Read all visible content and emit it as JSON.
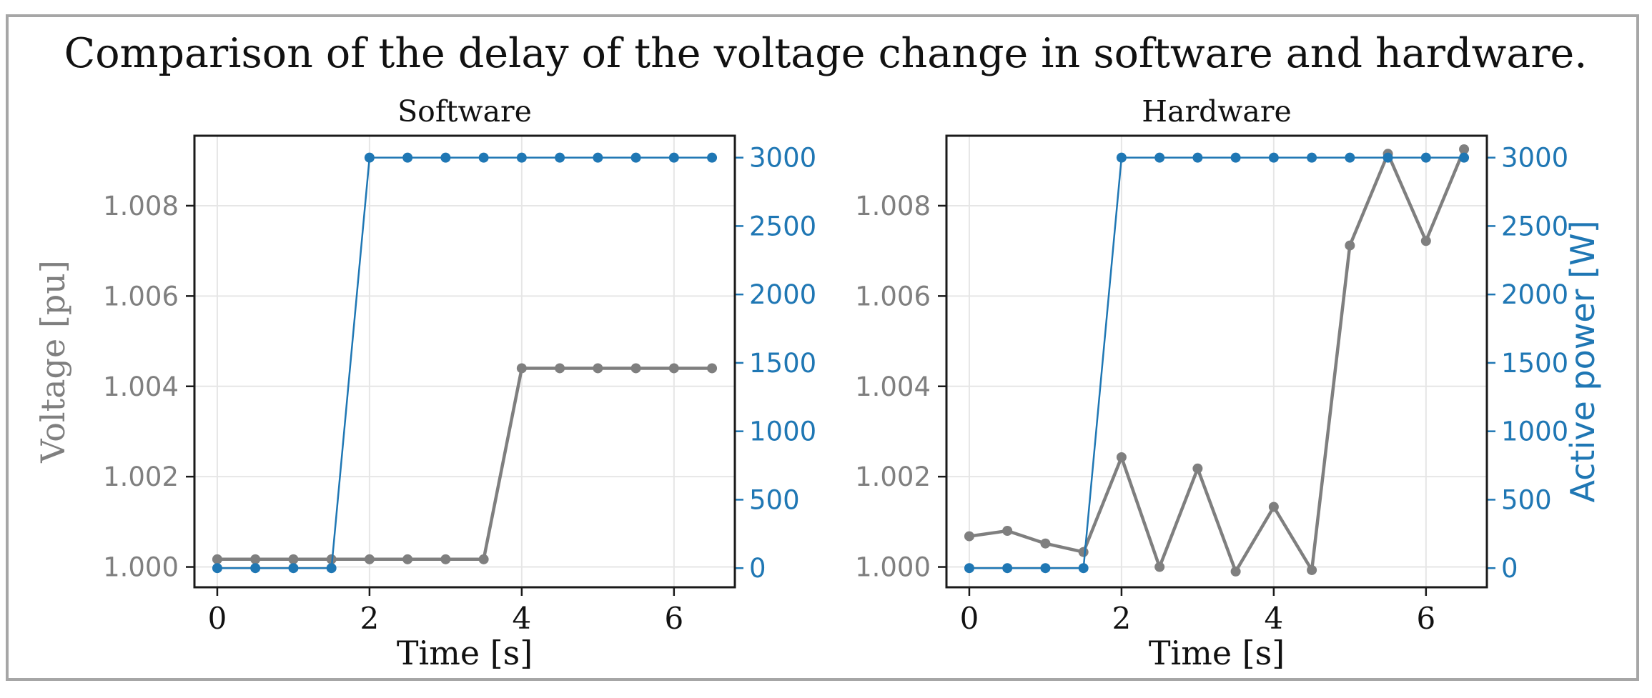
{
  "chart_data": {
    "type": "line",
    "title": "Comparison of the delay of the voltage change in software and hardware.",
    "colors": {
      "voltage": "#7f7f7f",
      "power": "#1f77b4",
      "grid": "#e6e6e6",
      "frame": "#1a1a1a"
    },
    "axes": {
      "xlabel": "Time [s]",
      "xlim": [
        -0.3,
        6.8
      ],
      "xticks": [
        0,
        2,
        4,
        6
      ],
      "xtick_labels": [
        "0",
        "2",
        "4",
        "6"
      ],
      "left_ylabel": "Voltage  [pu]",
      "left_ylim": [
        0.99955,
        1.00955
      ],
      "left_yticks": [
        1.0,
        1.002,
        1.004,
        1.006,
        1.008
      ],
      "left_ytick_labels": [
        "1.000",
        "1.002",
        "1.004",
        "1.006",
        "1.008"
      ],
      "right_ylabel": "Active power [W]",
      "right_ylim": [
        -140,
        3160
      ],
      "right_yticks": [
        0,
        500,
        1000,
        1500,
        2000,
        2500,
        3000
      ],
      "right_ytick_labels": [
        "0",
        "500",
        "1000",
        "1500",
        "2000",
        "2500",
        "3000"
      ]
    },
    "x": [
      0,
      0.5,
      1.0,
      1.5,
      2.0,
      2.5,
      3.0,
      3.5,
      4.0,
      4.5,
      5.0,
      5.5,
      6.0,
      6.5
    ],
    "panels": [
      {
        "title": "Software",
        "show_left_ylabel": true,
        "show_right_ylabel": false,
        "series": [
          {
            "name": "Voltage",
            "axis": "left",
            "values": [
              1.00017,
              1.00017,
              1.00017,
              1.00017,
              1.00017,
              1.00017,
              1.00017,
              1.00017,
              1.0044,
              1.0044,
              1.0044,
              1.0044,
              1.0044,
              1.0044
            ]
          },
          {
            "name": "Active power",
            "axis": "right",
            "values": [
              0,
              0,
              0,
              0,
              3000,
              3000,
              3000,
              3000,
              3000,
              3000,
              3000,
              3000,
              3000,
              3000
            ]
          }
        ]
      },
      {
        "title": "Hardware",
        "show_left_ylabel": false,
        "show_right_ylabel": true,
        "series": [
          {
            "name": "Voltage",
            "axis": "left",
            "values": [
              1.00068,
              1.0008,
              1.00052,
              1.00033,
              1.00243,
              1.0,
              1.00218,
              0.9999,
              1.00133,
              0.99993,
              1.00712,
              1.00915,
              1.00722,
              1.00925
            ]
          },
          {
            "name": "Active power",
            "axis": "right",
            "values": [
              0,
              0,
              0,
              0,
              3000,
              3000,
              3000,
              3000,
              3000,
              3000,
              3000,
              3000,
              3000,
              3000
            ]
          }
        ]
      }
    ]
  }
}
